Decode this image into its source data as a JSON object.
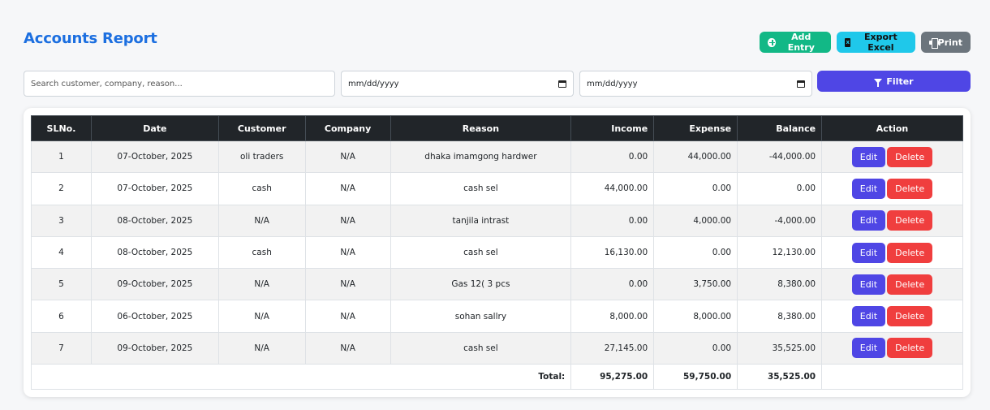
{
  "header": {
    "title": "Accounts Report"
  },
  "toolbar": {
    "add_label": "Add Entry",
    "export_label": "Export Excel",
    "print_label": "Print"
  },
  "filters": {
    "search_placeholder": "Search customer, company, reason...",
    "date_from_placeholder": "mm/dd/yyyy",
    "date_to_placeholder": "mm/dd/yyyy",
    "filter_label": "Filter"
  },
  "table": {
    "columns": [
      "SLNo.",
      "Date",
      "Customer",
      "Company",
      "Reason",
      "Income",
      "Expense",
      "Balance",
      "Action"
    ],
    "rows": [
      {
        "sl": "1",
        "date": "07-October, 2025",
        "customer": "oli traders",
        "company": "N/A",
        "reason": "dhaka imamgong hardwer",
        "income": "0.00",
        "expense": "44,000.00",
        "balance": "-44,000.00"
      },
      {
        "sl": "2",
        "date": "07-October, 2025",
        "customer": "cash",
        "company": "N/A",
        "reason": "cash sel",
        "income": "44,000.00",
        "expense": "0.00",
        "balance": "0.00"
      },
      {
        "sl": "3",
        "date": "08-October, 2025",
        "customer": "N/A",
        "company": "N/A",
        "reason": "tanjila intrast",
        "income": "0.00",
        "expense": "4,000.00",
        "balance": "-4,000.00"
      },
      {
        "sl": "4",
        "date": "08-October, 2025",
        "customer": "cash",
        "company": "N/A",
        "reason": "cash sel",
        "income": "16,130.00",
        "expense": "0.00",
        "balance": "12,130.00"
      },
      {
        "sl": "5",
        "date": "09-October, 2025",
        "customer": "N/A",
        "company": "N/A",
        "reason": "Gas 12( 3 pcs",
        "income": "0.00",
        "expense": "3,750.00",
        "balance": "8,380.00"
      },
      {
        "sl": "6",
        "date": "06-October, 2025",
        "customer": "N/A",
        "company": "N/A",
        "reason": "sohan sallry",
        "income": "8,000.00",
        "expense": "8,000.00",
        "balance": "8,380.00"
      },
      {
        "sl": "7",
        "date": "09-October, 2025",
        "customer": "N/A",
        "company": "N/A",
        "reason": "cash sel",
        "income": "27,145.00",
        "expense": "0.00",
        "balance": "35,525.00"
      }
    ],
    "edit_label": "Edit",
    "delete_label": "Delete",
    "totals": {
      "label": "Total:",
      "income": "95,275.00",
      "expense": "59,750.00",
      "balance": "35,525.00"
    }
  }
}
